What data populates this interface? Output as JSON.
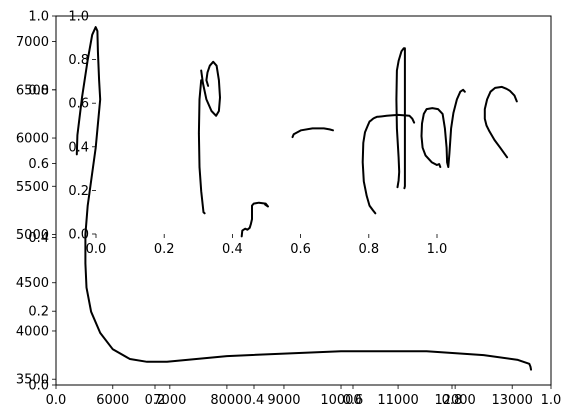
{
  "chart_data": [
    {
      "type": "line",
      "role": "primary-axes",
      "x_ticks": [
        "6000",
        "7000",
        "8000",
        "9000",
        "10000",
        "11000",
        "12000",
        "13000"
      ],
      "x_tick_values": [
        6000,
        7000,
        8000,
        9000,
        10000,
        11000,
        12000,
        13000
      ],
      "xlim": [
        5005,
        13680
      ],
      "y_ticks": [
        "3500",
        "4000",
        "4500",
        "5000",
        "5500",
        "6000",
        "6500",
        "7000"
      ],
      "y_tick_values": [
        3500,
        4000,
        4500,
        5000,
        5500,
        6000,
        6500,
        7000
      ],
      "ylim": [
        3440,
        7265
      ],
      "grid": false,
      "series": [
        {
          "color": "#000000",
          "strokes": [
            {
              "x": [
                5370,
                5380,
                5460,
                5560,
                5640,
                5700,
                5730,
                5740,
                5760,
                5780,
                5700,
                5560,
                5520,
                5520,
                5540,
                5620,
                5780,
                6000,
                6300,
                6600,
                6950,
                8000,
                10000,
                11500,
                12500,
                13100,
                13300,
                13320,
                13330
              ],
              "y": [
                5830,
                6030,
                6420,
                6810,
                7070,
                7150,
                7110,
                6900,
                6600,
                6400,
                5900,
                5300,
                5000,
                4700,
                4450,
                4200,
                3980,
                3810,
                3710,
                3680,
                3680,
                3740,
                3790,
                3790,
                3750,
                3700,
                3660,
                3630,
                3600
              ]
            },
            {
              "x": [
                7550,
                7520,
                7510,
                7520,
                7550,
                7590,
                7610
              ],
              "y": [
                6600,
                6400,
                6050,
                5700,
                5450,
                5230,
                5220
              ]
            },
            {
              "x": [
                7550,
                7580,
                7640,
                7730,
                7810,
                7860,
                7880,
                7860,
                7820,
                7760,
                7700,
                7660,
                7640,
                7670
              ],
              "y": [
                6700,
                6570,
                6400,
                6280,
                6230,
                6280,
                6420,
                6600,
                6750,
                6790,
                6750,
                6680,
                6600,
                6540
              ]
            },
            {
              "x": [
                8260,
                8270,
                8320,
                8360,
                8400,
                8420,
                8440,
                8440,
                8470,
                8560,
                8680,
                8720,
                8670
              ],
              "y": [
                4980,
                5040,
                5060,
                5050,
                5070,
                5110,
                5160,
                5300,
                5320,
                5330,
                5320,
                5290,
                5310
              ]
            },
            {
              "x": [
                9150,
                9170,
                9300,
                9500,
                9700,
                9800,
                9860
              ],
              "y": [
                6010,
                6040,
                6080,
                6100,
                6100,
                6090,
                6080
              ]
            },
            {
              "x": [
                10600,
                10560,
                10500,
                10450,
                10400,
                10380,
                10390,
                10420,
                10470,
                10500,
                10520,
                10560,
                10590,
                10630,
                10650,
                10800,
                11000,
                11200,
                11250,
                11280
              ],
              "y": [
                5220,
                5250,
                5300,
                5400,
                5550,
                5750,
                5950,
                6060,
                6130,
                6170,
                6180,
                6200,
                6210,
                6220,
                6220,
                6230,
                6240,
                6230,
                6200,
                6160
              ]
            },
            {
              "x": [
                10990,
                11010,
                11020,
                11010,
                10980,
                10970,
                10980,
                11010,
                11060,
                11100,
                11120,
                11120,
                11110
              ],
              "y": [
                5490,
                5560,
                5650,
                5800,
                6100,
                6400,
                6700,
                6800,
                6900,
                6930,
                6930,
                5500,
                5480
              ]
            },
            {
              "x": [
                11740,
                11720,
                11680,
                11590,
                11480,
                11430,
                11410,
                11420,
                11450,
                11500,
                11600,
                11700,
                11780,
                11820,
                11850,
                11860,
                11880,
                11900,
                11930,
                11970,
                12030,
                12090,
                12140,
                12170
              ],
              "y": [
                5700,
                5730,
                5720,
                5750,
                5820,
                5900,
                6020,
                6150,
                6250,
                6300,
                6310,
                6300,
                6250,
                6100,
                5900,
                5750,
                5700,
                5840,
                6100,
                6260,
                6400,
                6480,
                6500,
                6480
              ]
            },
            {
              "x": [
                12910,
                12790,
                12690,
                12600,
                12550,
                12520,
                12520,
                12560,
                12620,
                12700,
                12820,
                12900,
                12960,
                13040,
                13080
              ],
              "y": [
                5800,
                5900,
                5980,
                6070,
                6130,
                6200,
                6300,
                6400,
                6480,
                6520,
                6530,
                6510,
                6490,
                6440,
                6380
              ]
            }
          ]
        }
      ]
    },
    {
      "type": "line",
      "role": "overlay-axes",
      "x_ticks": [
        "0.0",
        "0.2",
        "0.4",
        "0.6",
        "0.8",
        "1.0"
      ],
      "x_tick_values": [
        0.0,
        0.2,
        0.4,
        0.6,
        0.8,
        1.0
      ],
      "xlim": [
        0,
        1
      ],
      "y_ticks": [
        "0.0",
        "0.2",
        "0.4",
        "0.6",
        "0.8",
        "1.0"
      ],
      "y_tick_values": [
        0.0,
        0.2,
        0.4,
        0.6,
        0.8,
        1.0
      ],
      "ylim": [
        0,
        1
      ],
      "series": []
    },
    {
      "type": "line",
      "role": "inset-axes",
      "x_ticks": [
        "0.0",
        "0.2",
        "0.4",
        "0.6",
        "0.8",
        "1.0"
      ],
      "x_tick_values": [
        0.0,
        0.2,
        0.4,
        0.6,
        0.8,
        1.0
      ],
      "xlim": [
        0,
        1
      ],
      "y_ticks": [
        "0.0",
        "0.2",
        "0.4",
        "0.6",
        "0.8",
        "1.0"
      ],
      "y_tick_values": [
        0.0,
        0.2,
        0.4,
        0.6,
        0.8,
        1.0
      ],
      "ylim": [
        0,
        1
      ],
      "series": []
    }
  ]
}
